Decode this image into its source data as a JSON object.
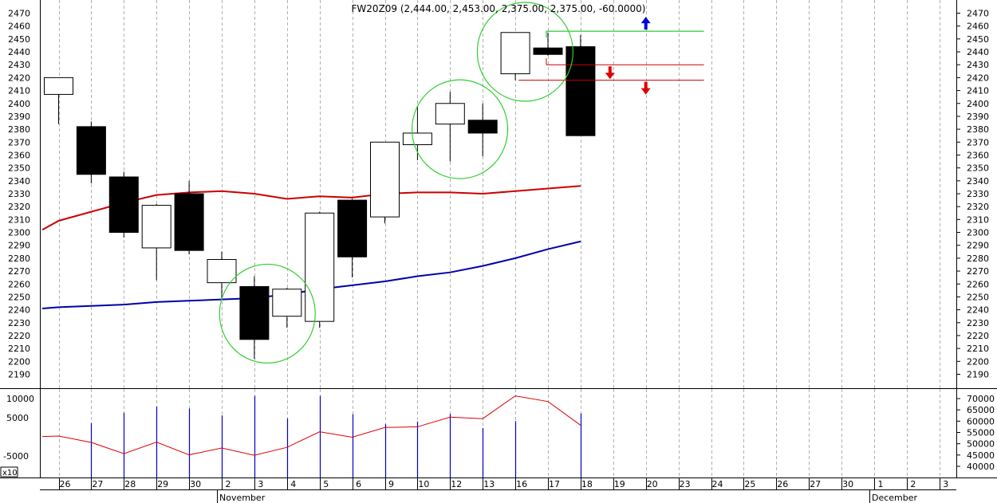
{
  "window": {
    "title": "FW20Z09 (2,444.00, 2,453.00, 2,375.00, 2,375.00, -60.0000)",
    "volume_multiplier": "x10"
  },
  "chart_data": [
    {
      "type": "candlestick",
      "symbol": "FW20Z09",
      "title": "FW20Z09 (2,444.00, 2,453.00, 2,375.00, 2,375.00, -60.0000)",
      "ylim": [
        2180,
        2475
      ],
      "y_ticks": [
        2190,
        2200,
        2210,
        2220,
        2230,
        2240,
        2250,
        2260,
        2270,
        2280,
        2290,
        2300,
        2310,
        2320,
        2330,
        2340,
        2350,
        2360,
        2370,
        2380,
        2390,
        2400,
        2410,
        2420,
        2430,
        2440,
        2450,
        2460,
        2470
      ],
      "y_tick_labels": [
        "2190",
        "2200",
        "2210",
        "2220",
        "2230",
        "2240",
        "2250",
        "2260",
        "2270",
        "2280",
        "2290",
        "2300",
        "2310",
        "2320",
        "2330",
        "2340",
        "2350",
        "2360",
        "2370",
        "2380",
        "2390",
        "2400",
        "2410",
        "2420",
        "2430",
        "2440",
        "2450",
        "2460",
        "2470"
      ],
      "x_labels": [
        "26",
        "27",
        "28",
        "29",
        "30",
        "2",
        "3",
        "4",
        "5",
        "6",
        "9",
        "10",
        "12",
        "13",
        "16",
        "17",
        "18",
        "19",
        "20",
        "23",
        "24",
        "25",
        "26",
        "27",
        "30",
        "1",
        "2",
        "3"
      ],
      "month_labels": [
        {
          "label": "November",
          "at_index": 5
        },
        {
          "label": "December",
          "at_index": 25
        }
      ],
      "candles": [
        {
          "x": "26",
          "open": 2407,
          "high": 2420,
          "low": 2384,
          "close": 2420
        },
        {
          "x": "27",
          "open": 2382,
          "high": 2386,
          "low": 2338,
          "close": 2345
        },
        {
          "x": "28",
          "open": 2343,
          "high": 2347,
          "low": 2296,
          "close": 2300
        },
        {
          "x": "29",
          "open": 2288,
          "high": 2322,
          "low": 2263,
          "close": 2321
        },
        {
          "x": "30",
          "open": 2330,
          "high": 2340,
          "low": 2283,
          "close": 2286
        },
        {
          "x": "2",
          "open": 2261,
          "high": 2285,
          "low": 2249,
          "close": 2279
        },
        {
          "x": "3",
          "open": 2258,
          "high": 2266,
          "low": 2202,
          "close": 2217
        },
        {
          "x": "4",
          "open": 2235,
          "high": 2257,
          "low": 2226,
          "close": 2256
        },
        {
          "x": "5",
          "open": 2231,
          "high": 2316,
          "low": 2226,
          "close": 2315
        },
        {
          "x": "6",
          "open": 2325,
          "high": 2326,
          "low": 2265,
          "close": 2281
        },
        {
          "x": "9",
          "open": 2312,
          "high": 2370,
          "low": 2307,
          "close": 2370
        },
        {
          "x": "10",
          "open": 2368,
          "high": 2398,
          "low": 2356,
          "close": 2377
        },
        {
          "x": "12",
          "open": 2384,
          "high": 2409,
          "low": 2355,
          "close": 2400
        },
        {
          "x": "13",
          "open": 2387,
          "high": 2400,
          "low": 2359,
          "close": 2377
        },
        {
          "x": "16",
          "open": 2423,
          "high": 2455,
          "low": 2418,
          "close": 2455
        },
        {
          "x": "17",
          "open": 2443,
          "high": 2455,
          "low": 2437,
          "close": 2438
        },
        {
          "x": "18",
          "open": 2444,
          "high": 2453,
          "low": 2375,
          "close": 2375
        }
      ],
      "moving_averages": [
        {
          "color": "#cc0000",
          "values": [
            [
              -0.5,
              2302
            ],
            [
              0,
              2309
            ],
            [
              1,
              2316
            ],
            [
              2,
              2323
            ],
            [
              3,
              2329
            ],
            [
              4,
              2331
            ],
            [
              5,
              2332
            ],
            [
              6,
              2330
            ],
            [
              7,
              2326
            ],
            [
              8,
              2328
            ],
            [
              9,
              2327
            ],
            [
              10,
              2330
            ],
            [
              11,
              2331
            ],
            [
              12,
              2331
            ],
            [
              13,
              2330
            ],
            [
              14,
              2332
            ],
            [
              15,
              2334
            ],
            [
              16,
              2336
            ]
          ]
        },
        {
          "color": "#0000aa",
          "values": [
            [
              -0.5,
              2241
            ],
            [
              0,
              2242
            ],
            [
              1,
              2243
            ],
            [
              2,
              2244
            ],
            [
              3,
              2246
            ],
            [
              4,
              2247
            ],
            [
              5,
              2248
            ],
            [
              6,
              2249
            ],
            [
              7,
              2252
            ],
            [
              8,
              2256
            ],
            [
              9,
              2259
            ],
            [
              10,
              2262
            ],
            [
              11,
              2266
            ],
            [
              12,
              2269
            ],
            [
              13,
              2274
            ],
            [
              14,
              2280
            ],
            [
              15,
              2287
            ],
            [
              16,
              2293
            ]
          ]
        }
      ],
      "horizontal_levels": [
        {
          "value": 2456,
          "color": "#00bb00",
          "from_index": 15,
          "to_index": 19,
          "arrow": "up",
          "arrow_color": "#0000dd"
        },
        {
          "value": 2430,
          "color": "#cc0000",
          "from_index": 15,
          "to_index": 19,
          "arrow": "down",
          "arrow_color": "#dd0000"
        },
        {
          "value": 2418,
          "color": "#cc0000",
          "from_index": 14,
          "to_index": 19,
          "arrow": "down",
          "arrow_color": "#dd0000"
        }
      ],
      "circles": [
        {
          "center_index": 6.4,
          "center_value": 2237,
          "color": "#33cc33"
        },
        {
          "center_index": 12.3,
          "center_value": 2380,
          "color": "#33cc33"
        },
        {
          "center_index": 14.3,
          "center_value": 2440,
          "color": "#33cc33"
        }
      ]
    },
    {
      "type": "bar+line",
      "name": "volume / open interest",
      "left_ylim": [
        -8500,
        12000
      ],
      "left_ticks": [
        10000,
        5000,
        -5000
      ],
      "left_tick_labels": [
        "10000",
        "5000",
        "-5000"
      ],
      "right_ylim": [
        34000,
        73500
      ],
      "right_ticks": [
        40000,
        45000,
        50000,
        55000,
        60000,
        65000,
        70000
      ],
      "right_tick_labels": [
        "40000",
        "45000",
        "50000",
        "55000",
        "60000",
        "65000",
        "70000"
      ],
      "volume": [
        0,
        3600,
        6300,
        7900,
        7400,
        5600,
        10700,
        4800,
        10700,
        5900,
        3300,
        4000,
        6000,
        2300,
        4100,
        0,
        6100
      ],
      "open_interest": [
        [
          -0.5,
          53200
        ],
        [
          0,
          53400
        ],
        [
          1,
          50600
        ],
        [
          2,
          45600
        ],
        [
          3,
          50700
        ],
        [
          4,
          45100
        ],
        [
          5,
          48100
        ],
        [
          6,
          44900
        ],
        [
          7,
          48400
        ],
        [
          8,
          55300
        ],
        [
          9,
          52900
        ],
        [
          10,
          57200
        ],
        [
          11,
          57500
        ],
        [
          12,
          61800
        ],
        [
          13,
          61100
        ],
        [
          14,
          71200
        ],
        [
          15,
          68700
        ],
        [
          16,
          58200
        ]
      ]
    }
  ]
}
